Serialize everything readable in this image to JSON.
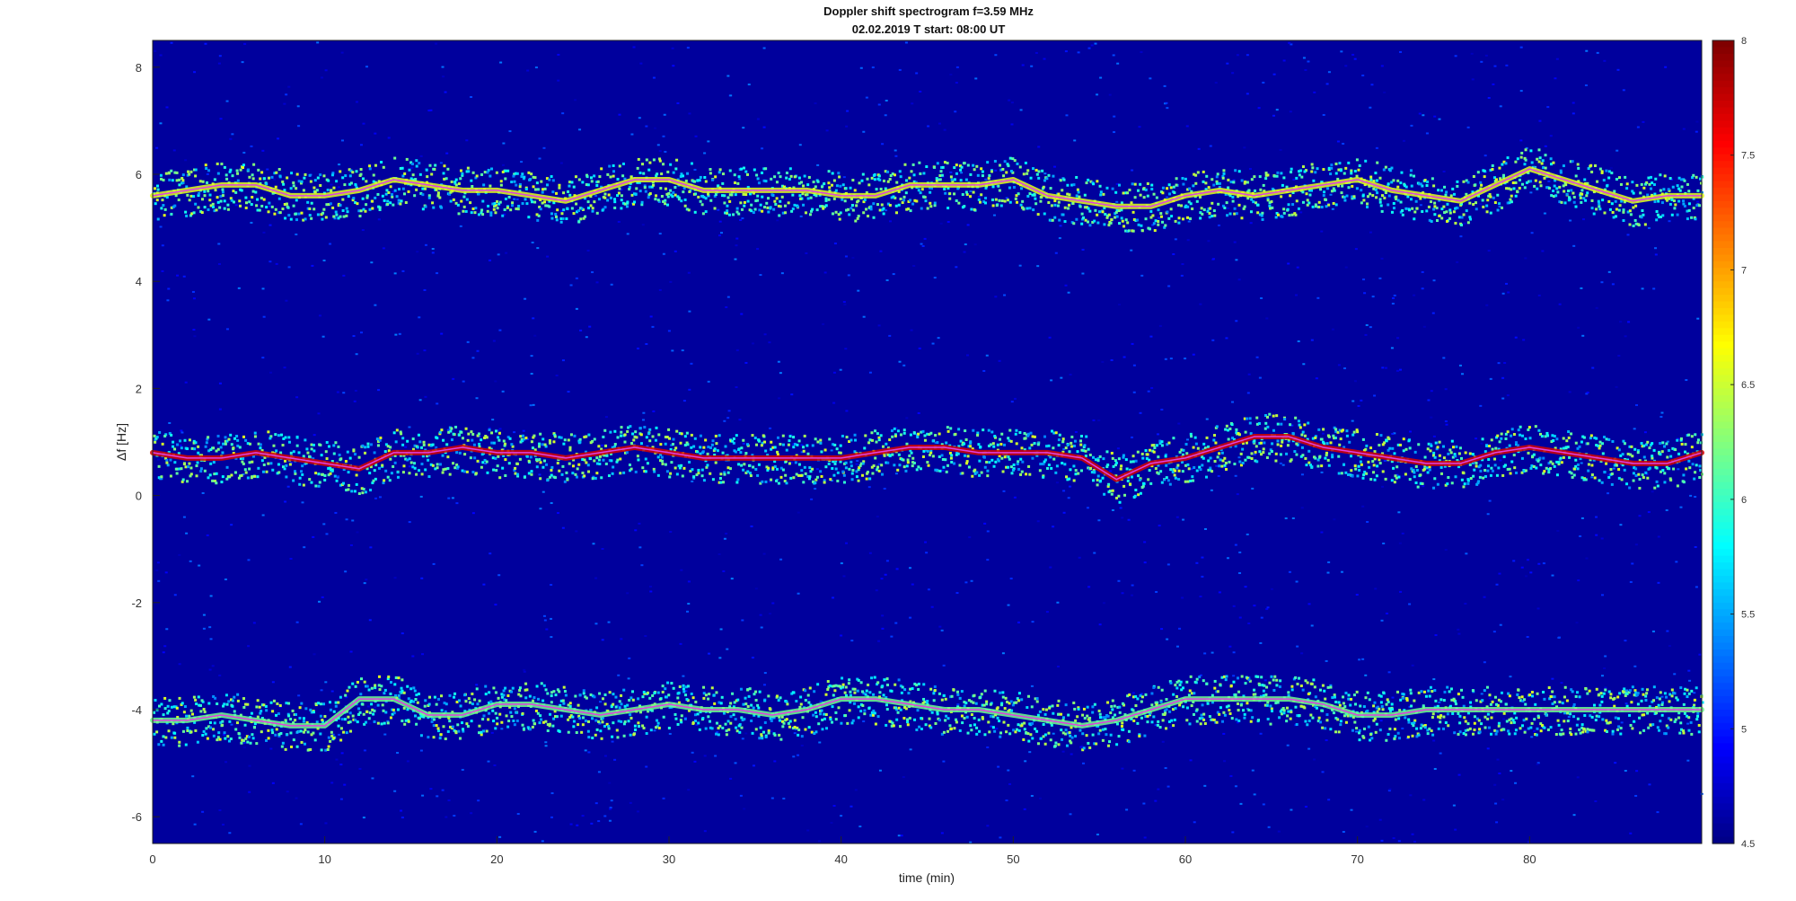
{
  "chart_data": {
    "type": "heatmap",
    "title": "Doppler shift spectrogram f=3.59 MHz",
    "subtitle": "02.02.2019   T start: 08:00 UT",
    "xlabel": "time (min)",
    "ylabel": "Δf [Hz]",
    "xlim": [
      0,
      90
    ],
    "ylim": [
      -6.5,
      8.5
    ],
    "x_ticks": [
      0,
      10,
      20,
      30,
      40,
      50,
      60,
      70,
      80
    ],
    "y_ticks": [
      -6,
      -4,
      -2,
      0,
      2,
      4,
      6,
      8
    ],
    "colorbar": {
      "colormap": "jet",
      "clim": [
        4.5,
        8
      ],
      "ticks": [
        4.5,
        5,
        5.5,
        6,
        6.5,
        7,
        7.5,
        8
      ]
    },
    "background_level": 4.6,
    "series": [
      {
        "band": "upper trace",
        "peak_level": 6.6,
        "x": [
          0,
          2,
          4,
          6,
          8,
          10,
          12,
          14,
          16,
          18,
          20,
          22,
          24,
          26,
          28,
          30,
          32,
          34,
          36,
          38,
          40,
          42,
          44,
          46,
          48,
          50,
          52,
          54,
          56,
          58,
          60,
          62,
          64,
          66,
          68,
          70,
          72,
          74,
          76,
          78,
          80,
          82,
          84,
          86,
          88,
          90
        ],
        "y": [
          5.6,
          5.7,
          5.8,
          5.8,
          5.6,
          5.6,
          5.7,
          5.9,
          5.8,
          5.7,
          5.7,
          5.6,
          5.5,
          5.7,
          5.9,
          5.9,
          5.7,
          5.7,
          5.7,
          5.7,
          5.6,
          5.6,
          5.8,
          5.8,
          5.8,
          5.9,
          5.6,
          5.5,
          5.4,
          5.4,
          5.6,
          5.7,
          5.6,
          5.7,
          5.8,
          5.9,
          5.7,
          5.6,
          5.5,
          5.8,
          6.1,
          5.9,
          5.7,
          5.5,
          5.6,
          5.6
        ]
      },
      {
        "band": "middle trace",
        "peak_level": 7.7,
        "x": [
          0,
          2,
          4,
          6,
          8,
          10,
          12,
          14,
          16,
          18,
          20,
          22,
          24,
          26,
          28,
          30,
          32,
          34,
          36,
          38,
          40,
          42,
          44,
          46,
          48,
          50,
          52,
          54,
          56,
          58,
          60,
          62,
          64,
          66,
          68,
          70,
          72,
          74,
          76,
          78,
          80,
          82,
          84,
          86,
          88,
          90
        ],
        "y": [
          0.8,
          0.7,
          0.7,
          0.8,
          0.7,
          0.6,
          0.5,
          0.8,
          0.8,
          0.9,
          0.8,
          0.8,
          0.7,
          0.8,
          0.9,
          0.8,
          0.7,
          0.7,
          0.7,
          0.7,
          0.7,
          0.8,
          0.9,
          0.9,
          0.8,
          0.8,
          0.8,
          0.7,
          0.3,
          0.6,
          0.7,
          0.9,
          1.1,
          1.1,
          0.9,
          0.8,
          0.7,
          0.6,
          0.6,
          0.8,
          0.9,
          0.8,
          0.7,
          0.6,
          0.6,
          0.8
        ]
      },
      {
        "band": "lower trace",
        "peak_level": 6.2,
        "x": [
          0,
          2,
          4,
          6,
          8,
          10,
          12,
          14,
          16,
          18,
          20,
          22,
          24,
          26,
          28,
          30,
          32,
          34,
          36,
          38,
          40,
          42,
          44,
          46,
          48,
          50,
          52,
          54,
          56,
          58,
          60,
          62,
          64,
          66,
          68,
          70,
          72,
          74,
          76,
          78,
          80,
          82,
          84,
          86,
          88,
          90
        ],
        "y": [
          -4.2,
          -4.2,
          -4.1,
          -4.2,
          -4.3,
          -4.3,
          -3.8,
          -3.8,
          -4.1,
          -4.1,
          -3.9,
          -3.9,
          -4.0,
          -4.1,
          -4.0,
          -3.9,
          -4.0,
          -4.0,
          -4.1,
          -4.0,
          -3.8,
          -3.8,
          -3.9,
          -4.0,
          -4.0,
          -4.1,
          -4.2,
          -4.3,
          -4.2,
          -4.0,
          -3.8,
          -3.8,
          -3.8,
          -3.8,
          -3.9,
          -4.1,
          -4.1,
          -4.0,
          -4.0,
          -4.0,
          -4.0,
          -4.0,
          -4.0,
          -4.0,
          -4.0,
          -4.0
        ]
      }
    ]
  }
}
